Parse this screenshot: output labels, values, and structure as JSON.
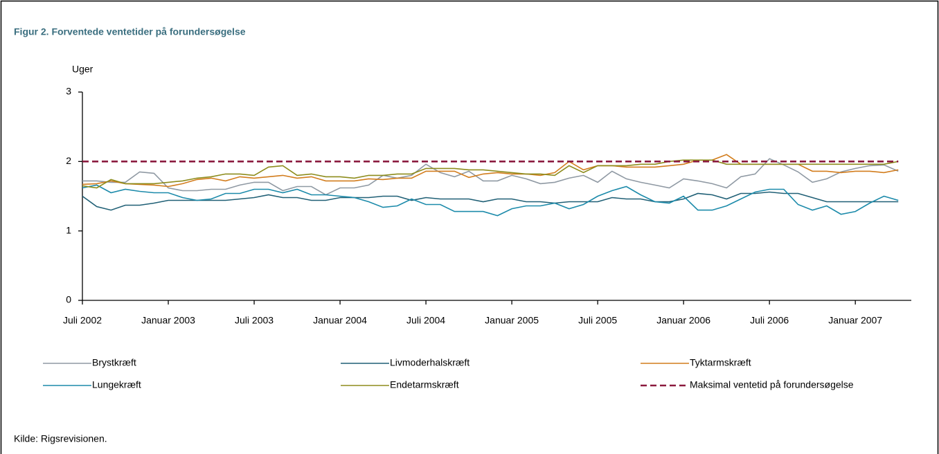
{
  "chart_data": {
    "type": "line",
    "title": "Figur 2. Forventede ventetider på forundersøgelse",
    "y_label": "Uger",
    "source": "Kilde: Rigsrevisionen.",
    "categories": [
      "Juli 2002",
      null,
      null,
      null,
      null,
      null,
      "Januar 2003",
      null,
      null,
      null,
      null,
      null,
      "Juli 2003",
      null,
      null,
      null,
      null,
      null,
      "Januar 2004",
      null,
      null,
      null,
      null,
      null,
      "Juli 2004",
      null,
      null,
      null,
      null,
      null,
      "Januar 2005",
      null,
      null,
      null,
      null,
      null,
      "Juli 2005",
      null,
      null,
      null,
      null,
      null,
      "Januar 2006",
      null,
      null,
      null,
      null,
      null,
      "Juli 2006",
      null,
      null,
      null,
      null,
      null,
      "Januar 2007",
      null,
      null,
      null
    ],
    "ylim": [
      0,
      3
    ],
    "yticks": [
      0,
      1,
      2,
      3
    ],
    "series": [
      {
        "name": "Brystkræft",
        "color": "#8f99a3",
        "values": [
          1.72,
          1.72,
          1.7,
          1.7,
          1.85,
          1.83,
          1.62,
          1.58,
          1.58,
          1.6,
          1.6,
          1.66,
          1.7,
          1.7,
          1.58,
          1.64,
          1.64,
          1.52,
          1.62,
          1.62,
          1.66,
          1.8,
          1.76,
          1.8,
          1.96,
          1.84,
          1.78,
          1.86,
          1.72,
          1.72,
          1.8,
          1.75,
          1.68,
          1.7,
          1.76,
          1.8,
          1.7,
          1.86,
          1.75,
          1.7,
          1.66,
          1.62,
          1.75,
          1.72,
          1.68,
          1.62,
          1.78,
          1.82,
          2.04,
          1.95,
          1.85,
          1.7,
          1.75,
          1.85,
          1.9,
          1.94,
          1.95,
          1.86
        ]
      },
      {
        "name": "Livmoderhalskræft",
        "color": "#1f5f75",
        "values": [
          1.5,
          1.35,
          1.3,
          1.37,
          1.37,
          1.4,
          1.44,
          1.44,
          1.44,
          1.44,
          1.44,
          1.46,
          1.48,
          1.52,
          1.48,
          1.48,
          1.44,
          1.44,
          1.48,
          1.48,
          1.48,
          1.5,
          1.5,
          1.44,
          1.48,
          1.46,
          1.46,
          1.46,
          1.42,
          1.46,
          1.46,
          1.42,
          1.42,
          1.4,
          1.42,
          1.42,
          1.42,
          1.48,
          1.46,
          1.46,
          1.42,
          1.42,
          1.46,
          1.54,
          1.52,
          1.46,
          1.54,
          1.54,
          1.56,
          1.54,
          1.54,
          1.48,
          1.42,
          1.42,
          1.42,
          1.42,
          1.42,
          1.42
        ]
      },
      {
        "name": "Tyktarmskræft",
        "color": "#d27c1c",
        "values": [
          1.67,
          1.68,
          1.72,
          1.68,
          1.67,
          1.66,
          1.64,
          1.68,
          1.74,
          1.76,
          1.72,
          1.78,
          1.76,
          1.78,
          1.8,
          1.76,
          1.78,
          1.72,
          1.72,
          1.72,
          1.75,
          1.74,
          1.76,
          1.76,
          1.86,
          1.86,
          1.86,
          1.77,
          1.82,
          1.84,
          1.82,
          1.82,
          1.8,
          1.84,
          2.0,
          1.88,
          1.94,
          1.94,
          1.92,
          1.92,
          1.92,
          1.94,
          1.96,
          2.02,
          2.02,
          2.1,
          1.96,
          1.96,
          1.96,
          1.96,
          1.96,
          1.86,
          1.86,
          1.84,
          1.86,
          1.86,
          1.84,
          1.88
        ]
      },
      {
        "name": "Lungekræft",
        "color": "#1b8aaa",
        "values": [
          1.62,
          1.66,
          1.55,
          1.6,
          1.57,
          1.55,
          1.55,
          1.48,
          1.44,
          1.46,
          1.54,
          1.54,
          1.6,
          1.6,
          1.55,
          1.6,
          1.52,
          1.52,
          1.5,
          1.48,
          1.42,
          1.34,
          1.36,
          1.46,
          1.38,
          1.38,
          1.28,
          1.28,
          1.28,
          1.22,
          1.32,
          1.36,
          1.36,
          1.4,
          1.32,
          1.38,
          1.5,
          1.58,
          1.64,
          1.52,
          1.42,
          1.4,
          1.5,
          1.3,
          1.3,
          1.36,
          1.46,
          1.56,
          1.6,
          1.6,
          1.38,
          1.3,
          1.36,
          1.24,
          1.28,
          1.4,
          1.5,
          1.44
        ]
      },
      {
        "name": "Endetarmskræft",
        "color": "#8d8c1c",
        "values": [
          1.65,
          1.62,
          1.74,
          1.68,
          1.68,
          1.68,
          1.7,
          1.72,
          1.76,
          1.78,
          1.82,
          1.82,
          1.8,
          1.92,
          1.94,
          1.8,
          1.82,
          1.78,
          1.78,
          1.76,
          1.8,
          1.8,
          1.82,
          1.82,
          1.9,
          1.9,
          1.9,
          1.88,
          1.88,
          1.86,
          1.84,
          1.82,
          1.82,
          1.8,
          1.94,
          1.84,
          1.94,
          1.94,
          1.94,
          1.96,
          1.96,
          2.0,
          2.02,
          2.02,
          2.02,
          1.96,
          1.96,
          1.96,
          1.96,
          1.96,
          1.96,
          1.96,
          1.96,
          1.96,
          1.96,
          1.96,
          1.96,
          2.0
        ]
      },
      {
        "name": "Maksimal ventetid på forundersøgelse",
        "color": "#8b1a3e",
        "line_style": "dashed",
        "values": [
          2,
          2,
          2,
          2,
          2,
          2,
          2,
          2,
          2,
          2,
          2,
          2,
          2,
          2,
          2,
          2,
          2,
          2,
          2,
          2,
          2,
          2,
          2,
          2,
          2,
          2,
          2,
          2,
          2,
          2,
          2,
          2,
          2,
          2,
          2,
          2,
          2,
          2,
          2,
          2,
          2,
          2,
          2,
          2,
          2,
          2,
          2,
          2,
          2,
          2,
          2,
          2,
          2,
          2,
          2,
          2,
          2,
          2
        ]
      }
    ]
  }
}
